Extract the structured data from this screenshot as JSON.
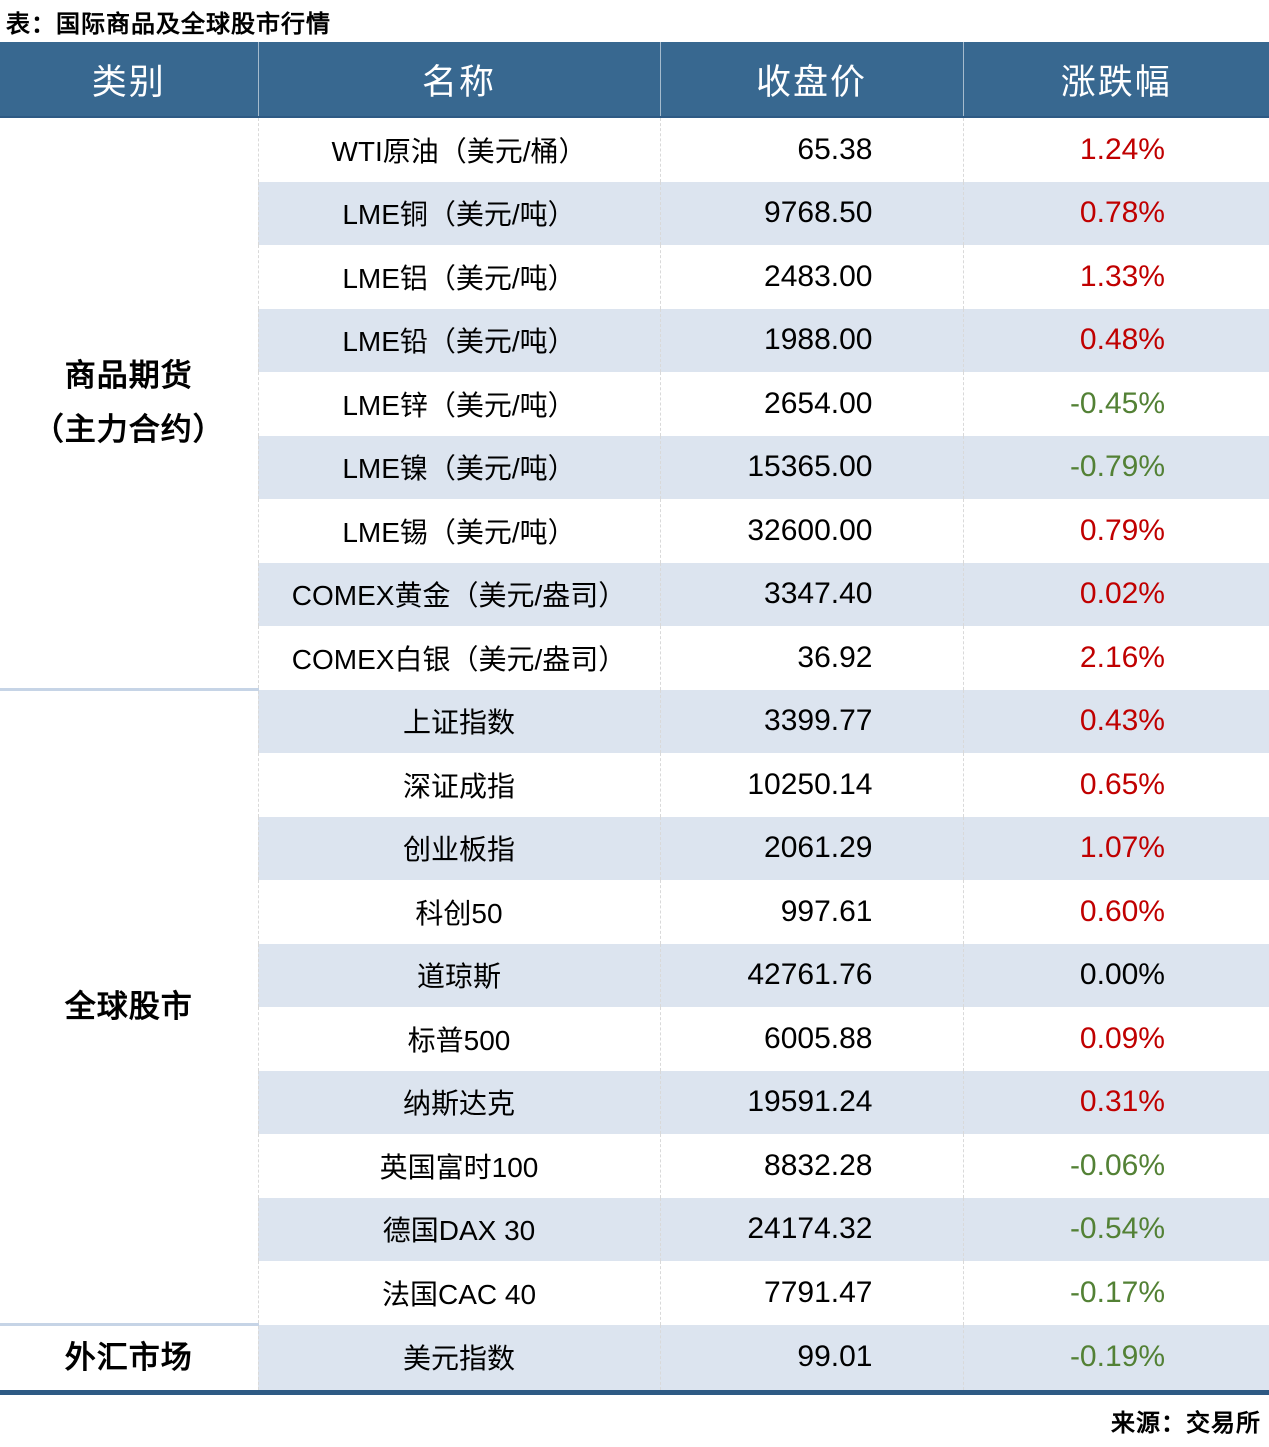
{
  "page": {
    "title": "表：国际商品及全球股市行情",
    "source": "来源：交易所"
  },
  "chart_data": {
    "type": "table",
    "title": "表：国际商品及全球股市行情",
    "columns": [
      "类别",
      "名称",
      "收盘价",
      "涨跌幅"
    ],
    "groups": [
      {
        "category_lines": [
          "商品期货",
          "（主力合约）"
        ],
        "rows": [
          {
            "name": "WTI原油（美元/桶）",
            "close": "65.38",
            "change": "1.24%",
            "trend": "up"
          },
          {
            "name": "LME铜（美元/吨）",
            "close": "9768.50",
            "change": "0.78%",
            "trend": "up"
          },
          {
            "name": "LME铝（美元/吨）",
            "close": "2483.00",
            "change": "1.33%",
            "trend": "up"
          },
          {
            "name": "LME铅（美元/吨）",
            "close": "1988.00",
            "change": "0.48%",
            "trend": "up"
          },
          {
            "name": "LME锌（美元/吨）",
            "close": "2654.00",
            "change": "-0.45%",
            "trend": "down"
          },
          {
            "name": "LME镍（美元/吨）",
            "close": "15365.00",
            "change": "-0.79%",
            "trend": "down"
          },
          {
            "name": "LME锡（美元/吨）",
            "close": "32600.00",
            "change": "0.79%",
            "trend": "up"
          },
          {
            "name": "COMEX黄金（美元/盎司）",
            "close": "3347.40",
            "change": "0.02%",
            "trend": "up"
          },
          {
            "name": "COMEX白银（美元/盎司）",
            "close": "36.92",
            "change": "2.16%",
            "trend": "up"
          }
        ]
      },
      {
        "category_lines": [
          "全球股市"
        ],
        "rows": [
          {
            "name": "上证指数",
            "close": "3399.77",
            "change": "0.43%",
            "trend": "up"
          },
          {
            "name": "深证成指",
            "close": "10250.14",
            "change": "0.65%",
            "trend": "up"
          },
          {
            "name": "创业板指",
            "close": "2061.29",
            "change": "1.07%",
            "trend": "up"
          },
          {
            "name": "科创50",
            "close": "997.61",
            "change": "0.60%",
            "trend": "up"
          },
          {
            "name": "道琼斯",
            "close": "42761.76",
            "change": "0.00%",
            "trend": "flat"
          },
          {
            "name": "标普500",
            "close": "6005.88",
            "change": "0.09%",
            "trend": "up"
          },
          {
            "name": "纳斯达克",
            "close": "19591.24",
            "change": "0.31%",
            "trend": "up"
          },
          {
            "name": "英国富时100",
            "close": "8832.28",
            "change": "-0.06%",
            "trend": "down"
          },
          {
            "name": "德国DAX 30",
            "close": "24174.32",
            "change": "-0.54%",
            "trend": "down"
          },
          {
            "name": "法国CAC 40",
            "close": "7791.47",
            "change": "-0.17%",
            "trend": "down"
          }
        ]
      },
      {
        "category_lines": [
          "外汇市场"
        ],
        "rows": [
          {
            "name": "美元指数",
            "close": "99.01",
            "change": "-0.19%",
            "trend": "down"
          }
        ]
      }
    ],
    "colors": {
      "up": "#c00000",
      "down": "#538135",
      "flat": "#000000",
      "header_bg": "#386890",
      "stripe": "#dce4ef",
      "group_line": "#c6d4e6",
      "border_strong": "#2e5a84"
    },
    "legend_note": "red = gain, green = loss"
  }
}
